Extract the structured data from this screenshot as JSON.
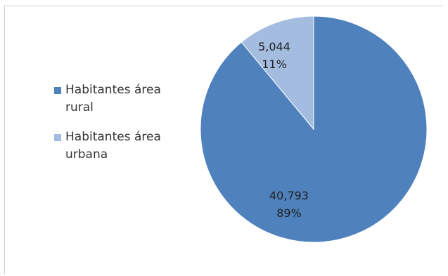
{
  "chart_data": {
    "type": "pie",
    "title": "",
    "categories": [
      "Habitantes área rural",
      "Habitantes área urbana"
    ],
    "values": [
      40793,
      5044
    ],
    "value_labels": [
      "40,793",
      "5,044"
    ],
    "percent_labels": [
      "89%",
      "11%"
    ],
    "colors": [
      "#4f81bd",
      "#a3bce0"
    ],
    "legend_position": "left",
    "start_angle": "12 o'clock, clockwise"
  },
  "legend": {
    "items": [
      {
        "label": "Habitantes área rural",
        "color": "#4f81bd"
      },
      {
        "label": "Habitantes área urbana",
        "color": "#a3bce0"
      }
    ]
  }
}
